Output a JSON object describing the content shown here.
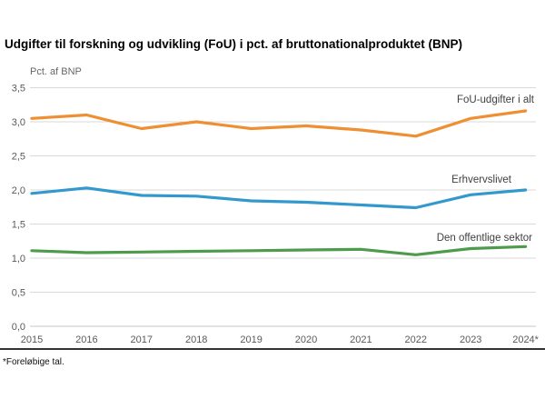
{
  "title": "Udgifter til forskning og udvikling (FoU) i pct. af bruttonationalproduktet (BNP)",
  "footnote": "*Foreløbige tal.",
  "chart_data": {
    "type": "line",
    "title": "Udgifter til forskning og udvikling (FoU) i pct. af bruttonationalproduktet (BNP)",
    "unit_label": "Pct. af BNP",
    "xlabel": "",
    "ylabel": "Pct. af BNP",
    "categories": [
      "2015",
      "2016",
      "2017",
      "2018",
      "2019",
      "2020",
      "2021",
      "2022",
      "2023",
      "2024*"
    ],
    "series": [
      {
        "name": "FoU-udgifter i alt",
        "color": "#EE8F33",
        "values": [
          3.05,
          3.1,
          2.9,
          3.0,
          2.9,
          2.94,
          2.88,
          2.79,
          3.05,
          3.16
        ]
      },
      {
        "name": "Erhvervslivet",
        "color": "#3399CC",
        "values": [
          1.95,
          2.03,
          1.92,
          1.91,
          1.84,
          1.82,
          1.78,
          1.74,
          1.93,
          2.0
        ]
      },
      {
        "name": "Den offentlige sektor",
        "color": "#4E9B4D",
        "values": [
          1.11,
          1.08,
          1.09,
          1.1,
          1.11,
          1.12,
          1.13,
          1.05,
          1.14,
          1.17
        ]
      }
    ],
    "ylim": [
      0.0,
      3.5
    ],
    "ytick_step": 0.5,
    "ytick_labels": [
      "0,0",
      "0,5",
      "1,0",
      "1,5",
      "2,0",
      "2,5",
      "3,0",
      "3,5"
    ],
    "grid": true,
    "legend_position": "inline-right-of-lines",
    "tick_color": "#595959",
    "grid_color": "#D9D9D9",
    "series_label_color": "#404040"
  }
}
